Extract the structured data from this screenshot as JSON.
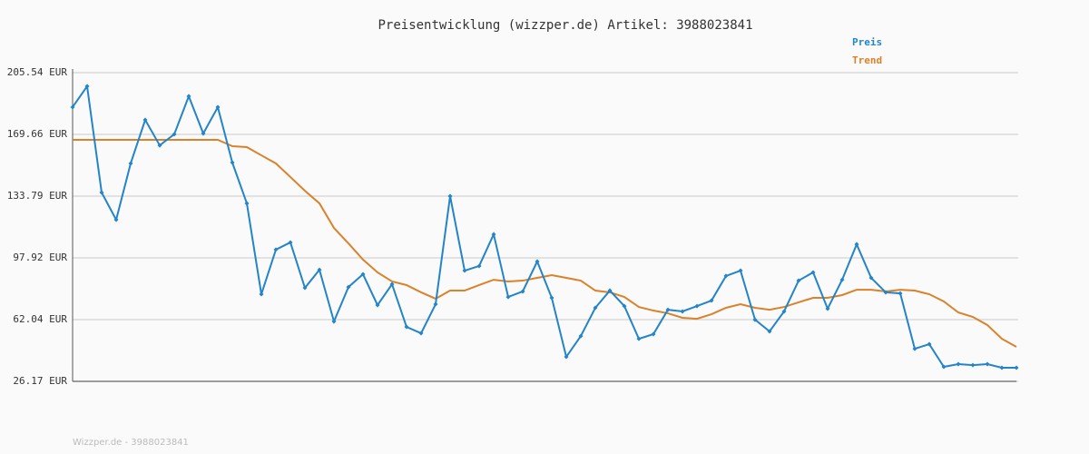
{
  "chart_data": {
    "type": "line",
    "title": "Preisentwicklung (wizzper.de) Artikel: 3988023841",
    "footer": "Wizzper.de - 3988023841",
    "ylim": [
      26.17,
      205.54
    ],
    "yticks": [
      {
        "value": 26.17,
        "label": "26.17 EUR"
      },
      {
        "value": 62.04,
        "label": "62.04 EUR"
      },
      {
        "value": 97.92,
        "label": "97.92 EUR"
      },
      {
        "value": 133.79,
        "label": "133.79 EUR"
      },
      {
        "value": 169.66,
        "label": "169.66 EUR"
      },
      {
        "value": 205.54,
        "label": "205.54 EUR"
      }
    ],
    "grid": true,
    "series": [
      {
        "name": "Preis",
        "color": "#2484c6",
        "markers": true,
        "values": [
          185.5,
          197.6,
          135.9,
          120.1,
          152.8,
          178.1,
          163.3,
          169.7,
          191.8,
          170.2,
          185.5,
          153.3,
          129.6,
          76.8,
          102.7,
          106.9,
          80.5,
          91.0,
          61.0,
          81.0,
          88.4,
          70.5,
          82.6,
          57.8,
          54.1,
          71.0,
          133.8,
          90.5,
          93.2,
          111.6,
          75.2,
          78.4,
          95.8,
          74.7,
          40.4,
          52.5,
          68.9,
          78.9,
          69.9,
          50.9,
          53.6,
          67.8,
          66.8,
          69.9,
          73.1,
          87.4,
          90.5,
          62.0,
          55.2,
          66.8,
          84.7,
          89.5,
          68.4,
          85.2,
          105.8,
          86.3,
          77.9,
          77.3,
          45.1,
          47.8,
          34.6,
          36.2,
          35.6,
          36.2,
          34.1,
          34.1
        ]
      },
      {
        "name": "Trend",
        "color": "#d9822b",
        "markers": false,
        "values": [
          166.5,
          166.5,
          166.5,
          166.5,
          166.5,
          166.5,
          166.5,
          166.5,
          166.5,
          166.5,
          166.5,
          162.8,
          162.3,
          157.5,
          152.8,
          144.9,
          136.9,
          129.6,
          115.3,
          106.3,
          96.9,
          89.5,
          84.2,
          82.1,
          77.9,
          74.2,
          78.9,
          78.9,
          82.1,
          85.2,
          84.2,
          84.7,
          86.3,
          87.9,
          86.3,
          84.7,
          78.9,
          77.9,
          75.2,
          69.4,
          67.3,
          65.7,
          63.1,
          62.5,
          65.2,
          68.9,
          71.0,
          68.9,
          67.8,
          69.4,
          72.1,
          74.7,
          74.7,
          76.3,
          79.4,
          79.4,
          78.4,
          79.4,
          78.9,
          76.8,
          72.6,
          66.2,
          63.6,
          58.9,
          50.9,
          46.2
        ]
      }
    ]
  }
}
